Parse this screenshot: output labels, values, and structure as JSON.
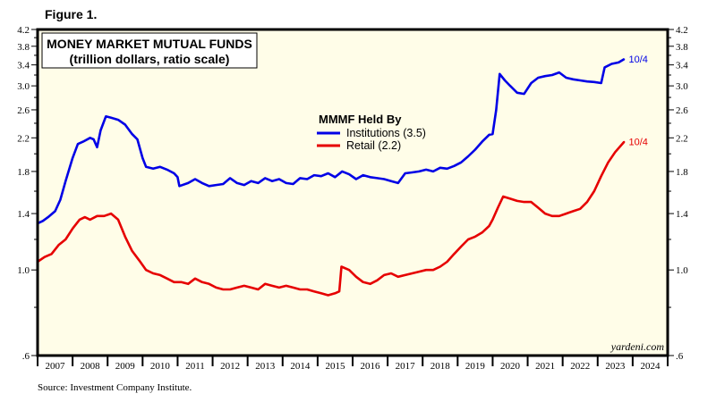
{
  "figure_label": "Figure 1.",
  "source": "Source: Investment Company Institute.",
  "watermark": "yardeni.com",
  "chart_data": {
    "type": "line",
    "title": "MONEY MARKET MUTUAL FUNDS",
    "subtitle": "(trillion dollars, ratio scale)",
    "xlabel": "",
    "ylabel": "",
    "yscale": "log",
    "ylim": [
      0.6,
      4.2
    ],
    "xlim": [
      2007,
      2025
    ],
    "y_ticks": [
      {
        "value": 4.2,
        "label": "4.2"
      },
      {
        "value": 3.8,
        "label": "3.8"
      },
      {
        "value": 3.4,
        "label": "3.4"
      },
      {
        "value": 3.0,
        "label": "3.0"
      },
      {
        "value": 2.6,
        "label": "2.6"
      },
      {
        "value": 2.2,
        "label": "2.2"
      },
      {
        "value": 1.8,
        "label": "1.8"
      },
      {
        "value": 1.4,
        "label": "1.4"
      },
      {
        "value": 1.0,
        "label": "1.0"
      },
      {
        "value": 0.6,
        "label": ".6"
      }
    ],
    "y_minor_ticks": [
      4.0,
      3.6,
      3.2,
      2.8,
      2.4,
      2.0,
      1.6,
      1.2,
      0.8
    ],
    "x_tick_labels": [
      "2007",
      "2008",
      "2009",
      "2010",
      "2011",
      "2012",
      "2013",
      "2014",
      "2015",
      "2016",
      "2017",
      "2018",
      "2019",
      "2020",
      "2021",
      "2022",
      "2023",
      "2024"
    ],
    "grid": false,
    "legend": {
      "title": "MMMF Held By",
      "placement": "top-center",
      "entries": [
        {
          "label": "Institutions (3.5)",
          "color": "#0000e6"
        },
        {
          "label": "Retail (2.2)",
          "color": "#e60000"
        }
      ]
    },
    "series": [
      {
        "name": "Institutions",
        "color": "#0000e6",
        "end_label": "10/4",
        "x": [
          2007.0,
          2007.15,
          2007.3,
          2007.5,
          2007.65,
          2007.8,
          2008.0,
          2008.15,
          2008.3,
          2008.5,
          2008.6,
          2008.7,
          2008.8,
          2008.95,
          2009.1,
          2009.3,
          2009.5,
          2009.7,
          2009.85,
          2010.0,
          2010.1,
          2010.3,
          2010.5,
          2010.7,
          2010.9,
          2011.0,
          2011.05,
          2011.3,
          2011.5,
          2011.7,
          2011.9,
          2012.1,
          2012.3,
          2012.5,
          2012.7,
          2012.9,
          2013.1,
          2013.3,
          2013.5,
          2013.7,
          2013.9,
          2014.1,
          2014.3,
          2014.5,
          2014.7,
          2014.9,
          2015.1,
          2015.3,
          2015.5,
          2015.7,
          2015.9,
          2016.1,
          2016.3,
          2016.5,
          2016.7,
          2016.9,
          2017.1,
          2017.3,
          2017.5,
          2017.7,
          2017.9,
          2018.1,
          2018.3,
          2018.5,
          2018.7,
          2018.9,
          2019.1,
          2019.3,
          2019.5,
          2019.7,
          2019.9,
          2020.0,
          2020.1,
          2020.2,
          2020.35,
          2020.5,
          2020.7,
          2020.9,
          2021.1,
          2021.3,
          2021.5,
          2021.7,
          2021.9,
          2022.1,
          2022.3,
          2022.5,
          2022.7,
          2022.9,
          2023.1,
          2023.2,
          2023.4,
          2023.6,
          2023.76
        ],
        "values": [
          1.32,
          1.34,
          1.37,
          1.42,
          1.52,
          1.7,
          1.95,
          2.12,
          2.15,
          2.2,
          2.18,
          2.08,
          2.3,
          2.5,
          2.48,
          2.45,
          2.38,
          2.25,
          2.18,
          1.95,
          1.85,
          1.83,
          1.85,
          1.82,
          1.78,
          1.74,
          1.65,
          1.68,
          1.72,
          1.68,
          1.65,
          1.66,
          1.67,
          1.73,
          1.68,
          1.66,
          1.7,
          1.68,
          1.73,
          1.7,
          1.72,
          1.68,
          1.67,
          1.73,
          1.72,
          1.76,
          1.75,
          1.78,
          1.74,
          1.8,
          1.77,
          1.72,
          1.76,
          1.74,
          1.73,
          1.72,
          1.7,
          1.68,
          1.78,
          1.79,
          1.8,
          1.82,
          1.8,
          1.84,
          1.83,
          1.86,
          1.9,
          1.97,
          2.05,
          2.15,
          2.24,
          2.25,
          2.6,
          3.22,
          3.1,
          3.0,
          2.88,
          2.86,
          3.05,
          3.15,
          3.18,
          3.2,
          3.25,
          3.15,
          3.12,
          3.1,
          3.08,
          3.07,
          3.05,
          3.35,
          3.42,
          3.45,
          3.52
        ]
      },
      {
        "name": "Retail",
        "color": "#e60000",
        "end_label": "10/4",
        "x": [
          2007.0,
          2007.2,
          2007.4,
          2007.6,
          2007.8,
          2008.0,
          2008.2,
          2008.35,
          2008.5,
          2008.7,
          2008.9,
          2009.1,
          2009.3,
          2009.5,
          2009.7,
          2009.9,
          2010.1,
          2010.3,
          2010.5,
          2010.7,
          2010.9,
          2011.1,
          2011.3,
          2011.5,
          2011.7,
          2011.9,
          2012.1,
          2012.3,
          2012.5,
          2012.7,
          2012.9,
          2013.1,
          2013.3,
          2013.5,
          2013.7,
          2013.9,
          2014.1,
          2014.3,
          2014.5,
          2014.7,
          2014.9,
          2015.1,
          2015.3,
          2015.5,
          2015.62,
          2015.68,
          2015.9,
          2016.1,
          2016.3,
          2016.5,
          2016.7,
          2016.9,
          2017.1,
          2017.3,
          2017.5,
          2017.7,
          2017.9,
          2018.1,
          2018.3,
          2018.5,
          2018.7,
          2018.9,
          2019.1,
          2019.3,
          2019.5,
          2019.7,
          2019.9,
          2020.0,
          2020.15,
          2020.3,
          2020.5,
          2020.7,
          2020.9,
          2021.1,
          2021.3,
          2021.5,
          2021.7,
          2021.9,
          2022.1,
          2022.3,
          2022.5,
          2022.7,
          2022.9,
          2023.1,
          2023.3,
          2023.5,
          2023.76
        ],
        "values": [
          1.05,
          1.08,
          1.1,
          1.16,
          1.2,
          1.28,
          1.35,
          1.37,
          1.35,
          1.38,
          1.38,
          1.4,
          1.35,
          1.22,
          1.12,
          1.06,
          1.0,
          0.98,
          0.97,
          0.95,
          0.93,
          0.93,
          0.92,
          0.95,
          0.93,
          0.92,
          0.9,
          0.89,
          0.89,
          0.9,
          0.91,
          0.9,
          0.89,
          0.92,
          0.91,
          0.9,
          0.91,
          0.9,
          0.89,
          0.89,
          0.88,
          0.87,
          0.86,
          0.87,
          0.88,
          1.02,
          1.0,
          0.96,
          0.93,
          0.92,
          0.94,
          0.97,
          0.98,
          0.96,
          0.97,
          0.98,
          0.99,
          1.0,
          1.0,
          1.02,
          1.05,
          1.1,
          1.15,
          1.2,
          1.22,
          1.25,
          1.3,
          1.35,
          1.45,
          1.55,
          1.53,
          1.51,
          1.5,
          1.5,
          1.45,
          1.4,
          1.38,
          1.38,
          1.4,
          1.42,
          1.44,
          1.5,
          1.6,
          1.75,
          1.9,
          2.02,
          2.15
        ]
      }
    ]
  }
}
